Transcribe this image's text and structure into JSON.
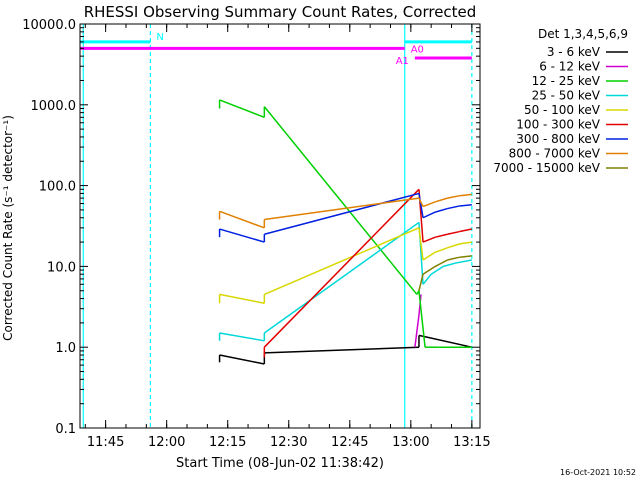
{
  "chart_data": {
    "type": "line",
    "title": "RHESSI Observing Summary Count Rates, Corrected",
    "xlabel": "Start Time (08-Jun-02 11:38:42)",
    "ylabel": "Corrected Count Rate (s⁻¹ detector⁻¹)",
    "yscale": "log",
    "ylim": [
      0.1,
      10000
    ],
    "xlim": [
      "11:38:42",
      "13:17:00"
    ],
    "xticks": [
      "11:45",
      "12:00",
      "12:15",
      "12:30",
      "12:45",
      "13:00",
      "13:15"
    ],
    "yticks": [
      "0.1",
      "1.0",
      "10.0",
      "100.0",
      "1000.0",
      "10000.0"
    ],
    "legend_title": "Det 1,3,4,5,6,9",
    "legend_position": "right",
    "series": [
      {
        "name": "3 - 6 keV",
        "color": "#000000",
        "points": [
          [
            "12:13:00",
            0.65
          ],
          [
            "12:13:00",
            0.8
          ],
          [
            "12:24:00",
            0.62
          ],
          [
            "12:24:00",
            0.85
          ],
          [
            "13:02:00",
            1.0
          ],
          [
            "13:02:00",
            1.4
          ],
          [
            "13:15:00",
            1.0
          ]
        ]
      },
      {
        "name": "6 - 12 keV",
        "color": "#d000d0",
        "points": [
          [
            "13:01:00",
            1.0
          ],
          [
            "13:02:00",
            2.5
          ],
          [
            "13:02:30",
            4.5
          ]
        ]
      },
      {
        "name": "12 - 25 keV",
        "color": "#00d000",
        "points": [
          [
            "12:13:00",
            900
          ],
          [
            "12:13:00",
            1150
          ],
          [
            "12:24:00",
            700
          ],
          [
            "12:24:00",
            950
          ],
          [
            "13:01:30",
            4.5
          ],
          [
            "13:02:00",
            5.0
          ],
          [
            "13:03:30",
            1.0
          ],
          [
            "13:07:00",
            1.0
          ],
          [
            "13:15:00",
            1.0
          ]
        ]
      },
      {
        "name": "25 - 50 keV",
        "color": "#00d8d8",
        "points": [
          [
            "12:13:00",
            1.2
          ],
          [
            "12:13:00",
            1.5
          ],
          [
            "12:24:00",
            1.2
          ],
          [
            "12:24:00",
            1.5
          ],
          [
            "13:02:00",
            35
          ],
          [
            "13:03:00",
            6
          ],
          [
            "13:05:00",
            8
          ],
          [
            "13:08:00",
            10
          ],
          [
            "13:11:00",
            11
          ],
          [
            "13:15:00",
            12
          ]
        ]
      },
      {
        "name": "50 - 100 keV",
        "color": "#d8d800",
        "points": [
          [
            "12:13:00",
            3.5
          ],
          [
            "12:13:00",
            4.5
          ],
          [
            "12:24:00",
            3.5
          ],
          [
            "12:24:00",
            4.5
          ],
          [
            "13:02:00",
            30
          ],
          [
            "13:03:00",
            12
          ],
          [
            "13:06:00",
            15
          ],
          [
            "13:09:00",
            17
          ],
          [
            "13:12:00",
            19
          ],
          [
            "13:15:00",
            20
          ]
        ]
      },
      {
        "name": "100 - 300 keV",
        "color": "#e00000",
        "points": [
          [
            "12:24:00",
            0.75
          ],
          [
            "12:24:00",
            1.0
          ],
          [
            "13:02:00",
            90
          ],
          [
            "13:03:00",
            20
          ],
          [
            "13:06:00",
            23
          ],
          [
            "13:09:00",
            25
          ],
          [
            "13:12:00",
            27
          ],
          [
            "13:15:00",
            29
          ]
        ]
      },
      {
        "name": "300 - 800 keV",
        "color": "#0020e0",
        "points": [
          [
            "12:13:00",
            23
          ],
          [
            "12:13:00",
            29
          ],
          [
            "12:24:00",
            20
          ],
          [
            "12:24:00",
            25
          ],
          [
            "13:02:00",
            80
          ],
          [
            "13:03:00",
            40
          ],
          [
            "13:06:00",
            47
          ],
          [
            "13:09:00",
            52
          ],
          [
            "13:12:00",
            56
          ],
          [
            "13:15:00",
            58
          ]
        ]
      },
      {
        "name": "800 - 7000 keV",
        "color": "#e08000",
        "points": [
          [
            "12:13:00",
            38
          ],
          [
            "12:13:00",
            48
          ],
          [
            "12:24:00",
            30
          ],
          [
            "12:24:00",
            38
          ],
          [
            "13:02:00",
            70
          ],
          [
            "13:03:00",
            55
          ],
          [
            "13:06:00",
            63
          ],
          [
            "13:09:00",
            70
          ],
          [
            "13:12:00",
            75
          ],
          [
            "13:15:00",
            78
          ]
        ]
      },
      {
        "name": "7000 - 15000 keV",
        "color": "#808000",
        "points": [
          [
            "13:02:00",
            5
          ],
          [
            "13:03:00",
            8
          ],
          [
            "13:06:00",
            10
          ],
          [
            "13:09:00",
            12
          ],
          [
            "13:12:00",
            13
          ],
          [
            "13:15:00",
            13.5
          ]
        ]
      }
    ],
    "attenuator_bars": [
      {
        "label": "N",
        "color": "#00ffff",
        "start": "11:38:42",
        "end": "11:56:00",
        "value": 6000
      },
      {
        "label": "A0",
        "color": "#ff00ff",
        "start": "11:38:42",
        "end": "12:58:30",
        "value": 5000
      },
      {
        "label": "A1",
        "color": "#ff00ff",
        "start": "13:01:00",
        "end": "13:15:00",
        "value": 3800
      },
      {
        "label": "",
        "color": "#00ffff",
        "start": "12:58:30",
        "end": "13:15:00",
        "value": 6000
      }
    ],
    "vertical_markers": [
      {
        "time": "11:39:30",
        "color": "#00ffff",
        "style": "solid"
      },
      {
        "time": "11:56:00",
        "color": "#00ffff",
        "style": "dashed"
      },
      {
        "time": "12:58:30",
        "color": "#00ffff",
        "style": "solid"
      },
      {
        "time": "13:15:00",
        "color": "#00ffff",
        "style": "dashed"
      }
    ],
    "timestamp": "16-Oct-2021 10:52"
  }
}
